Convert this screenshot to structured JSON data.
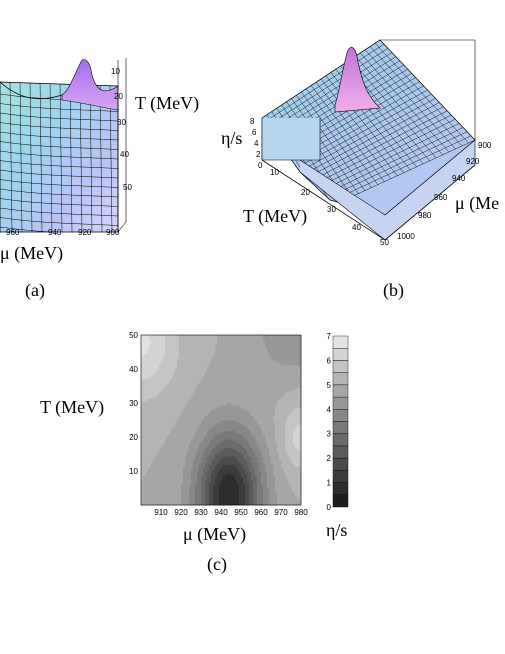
{
  "panel_a": {
    "caption": "(a)",
    "t_axis_label": "T (MeV)",
    "mu_axis_label": "μ (MeV)",
    "t_ticks": [
      "10",
      "20",
      "30",
      "40",
      "50"
    ],
    "mu_ticks": [
      "960",
      "940",
      "920",
      "900"
    ]
  },
  "panel_b": {
    "caption": "(b)",
    "z_axis_label": "η/s",
    "t_axis_label": "T (MeV)",
    "mu_axis_label": "μ (Me",
    "z_ticks": [
      "8",
      "6",
      "4",
      "2",
      "0"
    ],
    "t_ticks": [
      "10",
      "20",
      "30",
      "40",
      "50"
    ],
    "mu_ticks": [
      "900",
      "920",
      "940",
      "960",
      "980",
      "1000"
    ]
  },
  "panel_c": {
    "caption": "(c)",
    "y_axis_label": "T (MeV)",
    "x_axis_label": "μ (MeV)",
    "colorbar_label": "η/s",
    "colors": {
      "dark": "#1e1e1e",
      "light": "#f2f2f2"
    }
  },
  "chart_data": [
    {
      "type": "heatmap",
      "x": [
        900,
        910,
        920,
        930,
        940,
        950,
        960,
        970,
        980
      ],
      "x_ticks": [
        "910",
        "920",
        "930",
        "940",
        "950",
        "960",
        "970",
        "980"
      ],
      "y_ticks": [
        "10",
        "20",
        "30",
        "40",
        "50"
      ],
      "xlim": [
        900,
        980
      ],
      "ylim": [
        0,
        50
      ],
      "colorbar_range": [
        0,
        7
      ],
      "colorbar_ticks": [
        "0",
        "1",
        "2",
        "3",
        "4",
        "5",
        "6",
        "7"
      ],
      "grid": false,
      "minimum": {
        "x": 944,
        "y": 3
      },
      "maximum_region": "top-left"
    }
  ]
}
